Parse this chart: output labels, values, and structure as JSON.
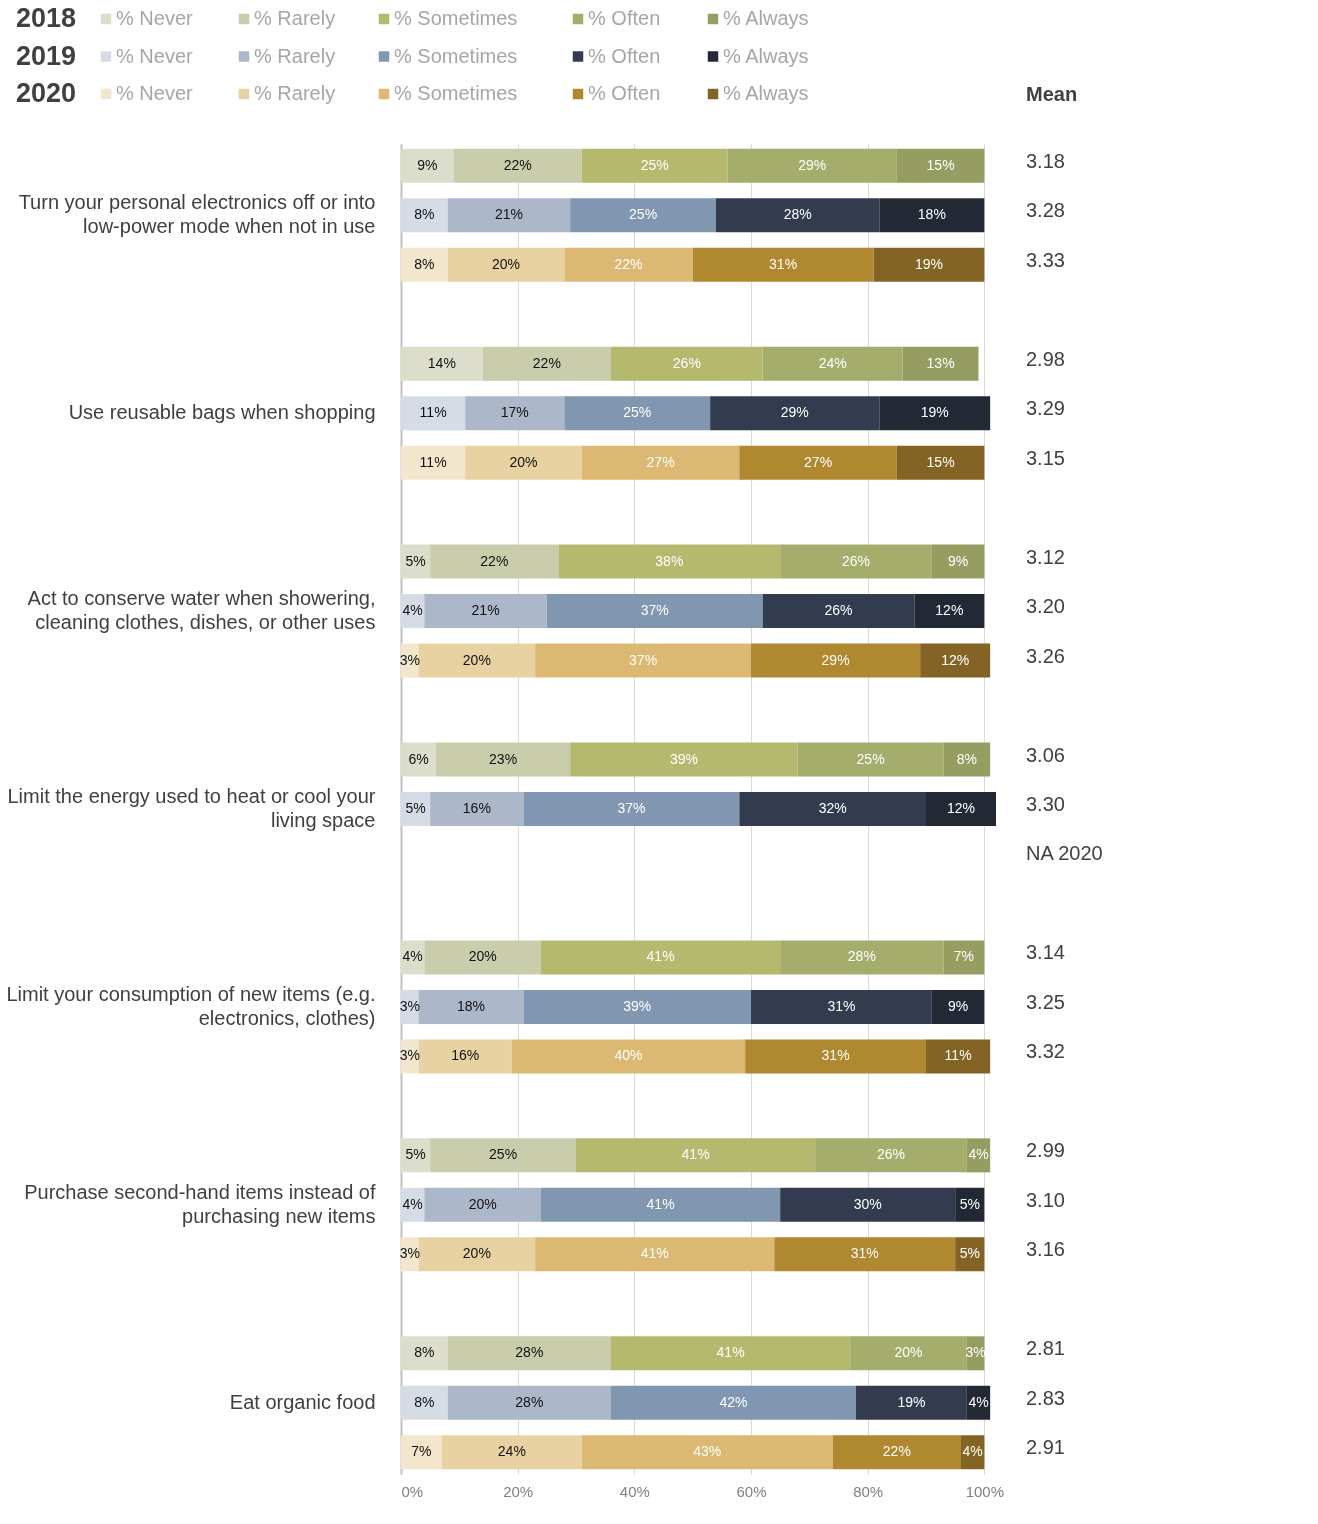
{
  "chart_data": {
    "type": "bar",
    "orientation": "horizontal",
    "stacked": true,
    "grid": "x",
    "legend": "top",
    "categories": [
      null,
      "Turn your personal electronics off or into\nlow-power mode when not in use",
      null,
      null,
      null,
      "Use reusable bags when shopping",
      null,
      null,
      null,
      "Act to conserve water when showering,\ncleaning clothes, dishes, or other uses",
      null,
      null,
      null,
      "Limit the energy used to heat or cool your\nliving space",
      null,
      null,
      null,
      "Limit your consumption of new items (e.g.\nelectronics, clothes)",
      null,
      null,
      null,
      "Purchase second-hand items instead of\npurchasing new items",
      null,
      null,
      null,
      "Eat organic food",
      null
    ],
    "xlim": [
      0,
      102
    ],
    "xticks": [
      {
        "value": 0,
        "label": "0%"
      },
      {
        "value": 20,
        "label": "20%"
      },
      {
        "value": 40,
        "label": "40%"
      },
      {
        "value": 60,
        "label": "60%"
      },
      {
        "value": 80,
        "label": "80%"
      },
      {
        "value": 100,
        "label": "100%"
      }
    ],
    "annotations": [
      "2018",
      "2019",
      "2020",
      "Mean",
      "3.18",
      "3.28",
      "3.33",
      "2.98",
      "3.29",
      "3.15",
      "3.12",
      "3.20",
      "3.26",
      "3.06",
      "3.30",
      "NA 2020",
      "3.14",
      "3.25",
      "3.32",
      "2.99",
      "3.10",
      "3.16",
      "2.81",
      "2.83",
      "2.91"
    ],
    "series": [
      {
        "name": "% Never",
        "color": "#dcdecb",
        "values": [
          9,
          null,
          null,
          null,
          14,
          null,
          null,
          null,
          5,
          null,
          null,
          null,
          6,
          null,
          null,
          null,
          4,
          null,
          null,
          null,
          5,
          null,
          null,
          null,
          8,
          null,
          null
        ],
        "value_labels": [
          "9%",
          null,
          null,
          null,
          "14%",
          null,
          null,
          null,
          "5%",
          null,
          null,
          null,
          "6%",
          null,
          null,
          null,
          "4%",
          null,
          null,
          null,
          "5%",
          null,
          null,
          null,
          "8%",
          null,
          null
        ]
      },
      {
        "name": "% Rarely",
        "color": "#c9cdab",
        "values": [
          22,
          null,
          null,
          null,
          22,
          null,
          null,
          null,
          22,
          null,
          null,
          null,
          23,
          null,
          null,
          null,
          20,
          null,
          null,
          null,
          25,
          null,
          null,
          null,
          28,
          null,
          null
        ],
        "value_labels": [
          "22%",
          null,
          null,
          null,
          "22%",
          null,
          null,
          null,
          "22%",
          null,
          null,
          null,
          "23%",
          null,
          null,
          null,
          "20%",
          null,
          null,
          null,
          "25%",
          null,
          null,
          null,
          "28%",
          null,
          null
        ]
      },
      {
        "name": "% Sometimes",
        "color": "#b4b96e",
        "values": [
          25,
          null,
          null,
          null,
          26,
          null,
          null,
          null,
          38,
          null,
          null,
          null,
          39,
          null,
          null,
          null,
          41,
          null,
          null,
          null,
          41,
          null,
          null,
          null,
          41,
          null,
          null
        ],
        "value_labels": [
          "25%",
          null,
          null,
          null,
          "26%",
          null,
          null,
          null,
          "38%",
          null,
          null,
          null,
          "39%",
          null,
          null,
          null,
          "41%",
          null,
          null,
          null,
          "41%",
          null,
          null,
          null,
          "41%",
          null,
          null
        ]
      },
      {
        "name": "% Often",
        "color": "#a5ad6d",
        "values": [
          29,
          null,
          null,
          null,
          24,
          null,
          null,
          null,
          26,
          null,
          null,
          null,
          25,
          null,
          null,
          null,
          28,
          null,
          null,
          null,
          26,
          null,
          null,
          null,
          20,
          null,
          null
        ],
        "value_labels": [
          "29%",
          null,
          null,
          null,
          "24%",
          null,
          null,
          null,
          "26%",
          null,
          null,
          null,
          "25%",
          null,
          null,
          null,
          "28%",
          null,
          null,
          null,
          "26%",
          null,
          null,
          null,
          "20%",
          null,
          null
        ]
      },
      {
        "name": "% Always",
        "color": "#969d61",
        "values": [
          15,
          null,
          null,
          null,
          13,
          null,
          null,
          null,
          9,
          null,
          null,
          null,
          8,
          null,
          null,
          null,
          7,
          null,
          null,
          null,
          4,
          null,
          null,
          null,
          3,
          null,
          null
        ],
        "value_labels": [
          "15%",
          null,
          null,
          null,
          "13%",
          null,
          null,
          null,
          "9%",
          null,
          null,
          null,
          "8%",
          null,
          null,
          null,
          "7%",
          null,
          null,
          null,
          "4%",
          null,
          null,
          null,
          "3%",
          null,
          null
        ]
      },
      {
        "name": "% Never",
        "color": "#d6dce6",
        "values": [
          null,
          8,
          null,
          null,
          null,
          11,
          null,
          null,
          null,
          4,
          null,
          null,
          null,
          5,
          null,
          null,
          null,
          3,
          null,
          null,
          null,
          4,
          null,
          null,
          null,
          8,
          null
        ],
        "value_labels": [
          null,
          "8%",
          null,
          null,
          null,
          "11%",
          null,
          null,
          null,
          "4%",
          null,
          null,
          null,
          "5%",
          null,
          null,
          null,
          "3%",
          null,
          null,
          null,
          "4%",
          null,
          null,
          null,
          "8%",
          null
        ]
      },
      {
        "name": "% Rarely",
        "color": "#acb7ca",
        "values": [
          null,
          21,
          null,
          null,
          null,
          17,
          null,
          null,
          null,
          21,
          null,
          null,
          null,
          16,
          null,
          null,
          null,
          18,
          null,
          null,
          null,
          20,
          null,
          null,
          null,
          28,
          null
        ],
        "value_labels": [
          null,
          "21%",
          null,
          null,
          null,
          "17%",
          null,
          null,
          null,
          "21%",
          null,
          null,
          null,
          "16%",
          null,
          null,
          null,
          "18%",
          null,
          null,
          null,
          "20%",
          null,
          null,
          null,
          "28%",
          null
        ]
      },
      {
        "name": "% Sometimes",
        "color": "#8196b0",
        "values": [
          null,
          25,
          null,
          null,
          null,
          25,
          null,
          null,
          null,
          37,
          null,
          null,
          null,
          37,
          null,
          null,
          null,
          39,
          null,
          null,
          null,
          41,
          null,
          null,
          null,
          42,
          null
        ],
        "value_labels": [
          null,
          "25%",
          null,
          null,
          null,
          "25%",
          null,
          null,
          null,
          "37%",
          null,
          null,
          null,
          "37%",
          null,
          null,
          null,
          "39%",
          null,
          null,
          null,
          "41%",
          null,
          null,
          null,
          "42%",
          null
        ]
      },
      {
        "name": "% Often",
        "color": "#323c4e",
        "values": [
          null,
          28,
          null,
          null,
          null,
          29,
          null,
          null,
          null,
          26,
          null,
          null,
          null,
          32,
          null,
          null,
          null,
          31,
          null,
          null,
          null,
          30,
          null,
          null,
          null,
          19,
          null
        ],
        "value_labels": [
          null,
          "28%",
          null,
          null,
          null,
          "29%",
          null,
          null,
          null,
          "26%",
          null,
          null,
          null,
          "32%",
          null,
          null,
          null,
          "31%",
          null,
          null,
          null,
          "30%",
          null,
          null,
          null,
          "19%",
          null
        ]
      },
      {
        "name": "% Always",
        "color": "#222834",
        "values": [
          null,
          18,
          null,
          null,
          null,
          19,
          null,
          null,
          null,
          12,
          null,
          null,
          null,
          12,
          null,
          null,
          null,
          9,
          null,
          null,
          null,
          5,
          null,
          null,
          null,
          4,
          null
        ],
        "value_labels": [
          null,
          "18%",
          null,
          null,
          null,
          "19%",
          null,
          null,
          null,
          "12%",
          null,
          null,
          null,
          "12%",
          null,
          null,
          null,
          "9%",
          null,
          null,
          null,
          "5%",
          null,
          null,
          null,
          "4%",
          null
        ]
      },
      {
        "name": "% Never",
        "color": "#f2e7cd",
        "values": [
          null,
          null,
          8,
          null,
          null,
          null,
          11,
          null,
          null,
          null,
          3,
          null,
          null,
          null,
          null,
          null,
          null,
          null,
          3,
          null,
          null,
          null,
          3,
          null,
          null,
          null,
          7
        ],
        "value_labels": [
          null,
          null,
          "8%",
          null,
          null,
          null,
          "11%",
          null,
          null,
          null,
          "3%",
          null,
          null,
          null,
          null,
          null,
          null,
          null,
          "3%",
          null,
          null,
          null,
          "3%",
          null,
          null,
          null,
          "7%"
        ]
      },
      {
        "name": "% Rarely",
        "color": "#e8d2a2",
        "values": [
          null,
          null,
          20,
          null,
          null,
          null,
          20,
          null,
          null,
          null,
          20,
          null,
          null,
          null,
          null,
          null,
          null,
          null,
          16,
          null,
          null,
          null,
          20,
          null,
          null,
          null,
          24
        ],
        "value_labels": [
          null,
          null,
          "20%",
          null,
          null,
          null,
          "20%",
          null,
          null,
          null,
          "20%",
          null,
          null,
          null,
          null,
          null,
          null,
          null,
          "16%",
          null,
          null,
          null,
          "20%",
          null,
          null,
          null,
          "24%"
        ]
      },
      {
        "name": "% Sometimes",
        "color": "#dcb973",
        "values": [
          null,
          null,
          22,
          null,
          null,
          null,
          27,
          null,
          null,
          null,
          37,
          null,
          null,
          null,
          null,
          null,
          null,
          null,
          40,
          null,
          null,
          null,
          41,
          null,
          null,
          null,
          43
        ],
        "value_labels": [
          null,
          null,
          "22%",
          null,
          null,
          null,
          "27%",
          null,
          null,
          null,
          "37%",
          null,
          null,
          null,
          null,
          null,
          null,
          null,
          "40%",
          null,
          null,
          null,
          "41%",
          null,
          null,
          null,
          "43%"
        ]
      },
      {
        "name": "% Often",
        "color": "#b0882f",
        "values": [
          null,
          null,
          31,
          null,
          null,
          null,
          27,
          null,
          null,
          null,
          29,
          null,
          null,
          null,
          null,
          null,
          null,
          null,
          31,
          null,
          null,
          null,
          31,
          null,
          null,
          null,
          22
        ],
        "value_labels": [
          null,
          null,
          "31%",
          null,
          null,
          null,
          "27%",
          null,
          null,
          null,
          "29%",
          null,
          null,
          null,
          null,
          null,
          null,
          null,
          "31%",
          null,
          null,
          null,
          "31%",
          null,
          null,
          null,
          "22%"
        ]
      },
      {
        "name": "% Always",
        "color": "#846424",
        "values": [
          null,
          null,
          19,
          null,
          null,
          null,
          15,
          null,
          null,
          null,
          12,
          null,
          null,
          null,
          null,
          null,
          null,
          null,
          11,
          null,
          null,
          null,
          5,
          null,
          null,
          null,
          4
        ],
        "value_labels": [
          null,
          null,
          "19%",
          null,
          null,
          null,
          "15%",
          null,
          null,
          null,
          "12%",
          null,
          null,
          null,
          null,
          null,
          null,
          null,
          "11%",
          null,
          null,
          null,
          "5%",
          null,
          null,
          null,
          "4%"
        ]
      }
    ]
  }
}
